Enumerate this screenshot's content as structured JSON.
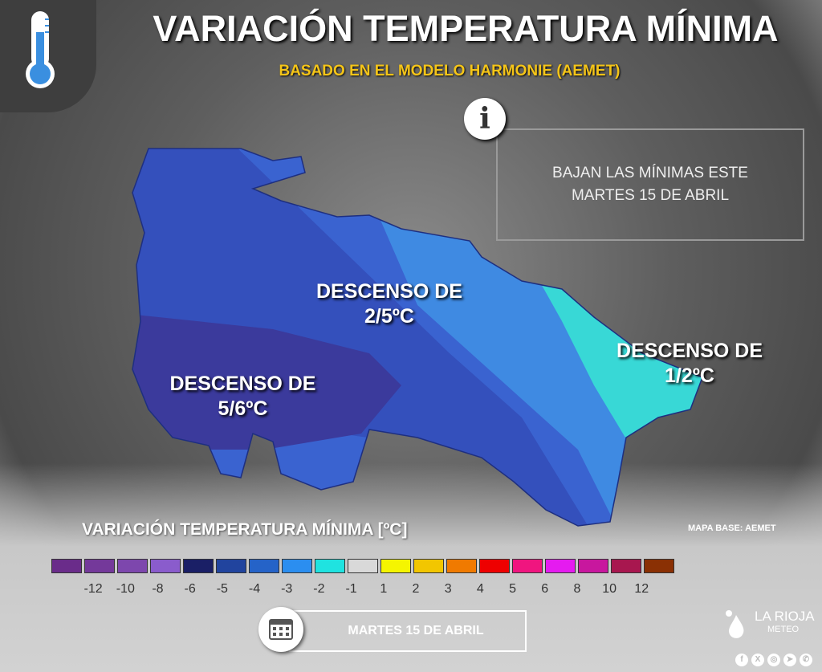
{
  "header": {
    "title": "VARIACIÓN TEMPERATURA MÍNIMA",
    "subtitle": "BASADO EN EL MODELO HARMONIE (AEMET)"
  },
  "info": {
    "line1": "BAJAN LAS MÍNIMAS ESTE",
    "line2": "MARTES 15 DE ABRIL"
  },
  "map": {
    "labels": [
      {
        "l1": "DESCENSO DE",
        "l2": "2/5ºC"
      },
      {
        "l1": "DESCENSO DE",
        "l2": "1/2ºC"
      },
      {
        "l1": "DESCENSO DE",
        "l2": "5/6ºC"
      }
    ],
    "colors": {
      "deep": "#3b3a9c",
      "dark": "#3450bc",
      "mid": "#3a63d0",
      "light": "#3f8ae2",
      "cyan": "#38d8d6"
    },
    "base_credit": "MAPA BASE: AEMET"
  },
  "legend": {
    "title": "VARIACIÓN TEMPERATURA MÍNIMA [ºC]",
    "colors": [
      "#6a2c8a",
      "#74399a",
      "#7d47ad",
      "#8a5ccc",
      "#1a1f66",
      "#21449e",
      "#2563c8",
      "#2b8ef0",
      "#1fe3e0",
      "#d9d9d9",
      "#f5f500",
      "#f2c600",
      "#f07a00",
      "#ee0000",
      "#f0157f",
      "#e51bf0",
      "#c8179e",
      "#a8174f",
      "#8a3004"
    ],
    "ticks": [
      "-12",
      "-10",
      "-8",
      "-6",
      "-5",
      "-4",
      "-3",
      "-2",
      "-1",
      "1",
      "2",
      "3",
      "4",
      "5",
      "6",
      "8",
      "10",
      "12"
    ]
  },
  "footer": {
    "date": "MARTES 15 DE ABRIL",
    "brand1": "LA RIOJA",
    "brand2": "METEO",
    "social": [
      {
        "icon": "facebook-icon",
        "g": "f"
      },
      {
        "icon": "x-icon",
        "g": "X"
      },
      {
        "icon": "instagram-icon",
        "g": "◎"
      },
      {
        "icon": "telegram-icon",
        "g": "➤"
      },
      {
        "icon": "whatsapp-icon",
        "g": "✆"
      }
    ]
  }
}
